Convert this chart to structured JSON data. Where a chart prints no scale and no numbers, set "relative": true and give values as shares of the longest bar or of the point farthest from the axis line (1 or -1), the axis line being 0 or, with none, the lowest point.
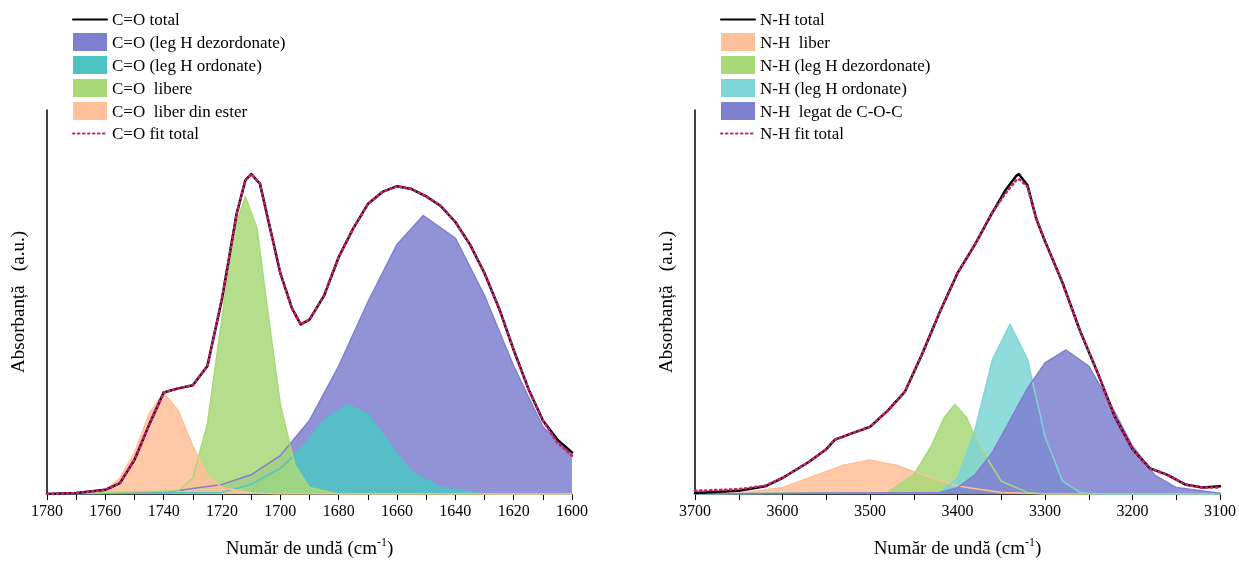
{
  "chart_data": [
    {
      "type": "area",
      "relative": true,
      "xlabel": "Număr de undă (cm$^{-1}$)",
      "ylabel": "Absorbanță   (a.u.)",
      "xlim": [
        1780,
        1600
      ],
      "xticks": [
        1780,
        {
          "value": 1770,
          "label": null
        },
        1760,
        {
          "value": 1750,
          "label": null
        },
        1740,
        {
          "value": 1730,
          "label": null
        },
        1720,
        {
          "value": 1710,
          "label": null
        },
        1700,
        {
          "value": 1690,
          "label": null
        },
        1680,
        {
          "value": 1670,
          "label": null
        },
        1660,
        {
          "value": 1650,
          "label": null
        },
        1640,
        {
          "value": 1630,
          "label": null
        },
        1620,
        {
          "value": 1610,
          "label": null
        },
        1600
      ],
      "legend": "top left",
      "grid": false,
      "marker": "none",
      "series": [
        {
          "name": "C=O total",
          "type": "line",
          "color": "#000000",
          "line_style": "solid",
          "x": [
            1780,
            1770,
            1760,
            1755,
            1750,
            1745,
            1740,
            1735,
            1730,
            1725,
            1720,
            1715,
            1712,
            1710,
            1707,
            1703,
            1700,
            1696,
            1693,
            1690,
            1685,
            1680,
            1675,
            1670,
            1665,
            1660,
            1655,
            1650,
            1645,
            1640,
            1635,
            1630,
            1625,
            1620,
            1615,
            1610,
            1605,
            1600
          ],
          "values": [
            0.0,
            0.003,
            0.013,
            0.034,
            0.107,
            0.216,
            0.317,
            0.33,
            0.34,
            0.4,
            0.61,
            0.875,
            0.98,
            1.0,
            0.97,
            0.81,
            0.69,
            0.58,
            0.53,
            0.545,
            0.62,
            0.74,
            0.83,
            0.906,
            0.944,
            0.962,
            0.953,
            0.93,
            0.9,
            0.85,
            0.78,
            0.69,
            0.58,
            0.45,
            0.33,
            0.23,
            0.17,
            0.13
          ]
        },
        {
          "name": "C=O (leg H dezordonate)",
          "color": "#7f7fd0",
          "x": [
            1780,
            1740,
            1720,
            1710,
            1700,
            1690,
            1680,
            1670,
            1660,
            1651,
            1640,
            1630,
            1620,
            1610,
            1600
          ],
          "values": [
            0.0,
            0.005,
            0.03,
            0.06,
            0.12,
            0.23,
            0.4,
            0.6,
            0.78,
            0.87,
            0.8,
            0.62,
            0.4,
            0.21,
            0.12
          ]
        },
        {
          "name": "C=O (leg H ordonate)",
          "color": "#4cc4c4",
          "x": [
            1780,
            1720,
            1710,
            1700,
            1693,
            1685,
            1677,
            1670,
            1662,
            1655,
            1645,
            1630,
            1600
          ],
          "values": [
            0.0,
            0.005,
            0.03,
            0.08,
            0.14,
            0.23,
            0.28,
            0.25,
            0.15,
            0.07,
            0.02,
            0.0,
            0.0
          ]
        },
        {
          "name": "C=O  libere",
          "color": "#a8d878",
          "x": [
            1780,
            1735,
            1730,
            1725,
            1720,
            1716,
            1712,
            1708,
            1704,
            1700,
            1695,
            1690,
            1680,
            1600
          ],
          "values": [
            0.0,
            0.01,
            0.05,
            0.22,
            0.55,
            0.82,
            0.93,
            0.83,
            0.55,
            0.28,
            0.09,
            0.02,
            0.0,
            0.0
          ]
        },
        {
          "name": "C=O  liber din ester",
          "color": "#ffbf99",
          "x": [
            1780,
            1770,
            1760,
            1755,
            1750,
            1745,
            1740,
            1735,
            1730,
            1725,
            1720,
            1710,
            1700,
            1600
          ],
          "values": [
            0.0,
            0.002,
            0.01,
            0.05,
            0.13,
            0.25,
            0.317,
            0.26,
            0.15,
            0.06,
            0.02,
            0.003,
            0.0,
            0.0
          ]
        },
        {
          "name": "C=O fit total",
          "type": "line",
          "color": "#c8206e",
          "line_style": "dotted",
          "x": [
            1780,
            1770,
            1760,
            1755,
            1750,
            1745,
            1740,
            1735,
            1730,
            1725,
            1720,
            1715,
            1712,
            1710,
            1707,
            1703,
            1700,
            1696,
            1693,
            1690,
            1685,
            1680,
            1675,
            1670,
            1665,
            1660,
            1655,
            1650,
            1645,
            1640,
            1635,
            1630,
            1625,
            1620,
            1615,
            1610,
            1605,
            1600
          ],
          "values": [
            0.0,
            0.003,
            0.013,
            0.034,
            0.107,
            0.216,
            0.317,
            0.33,
            0.34,
            0.4,
            0.61,
            0.875,
            0.98,
            1.0,
            0.97,
            0.81,
            0.69,
            0.58,
            0.53,
            0.545,
            0.62,
            0.74,
            0.83,
            0.906,
            0.944,
            0.962,
            0.953,
            0.93,
            0.9,
            0.85,
            0.78,
            0.69,
            0.58,
            0.45,
            0.33,
            0.23,
            0.16,
            0.12
          ]
        }
      ]
    },
    {
      "type": "area",
      "relative": true,
      "xlabel": "Număr de undă (cm$^{-1}$)",
      "ylabel": "Absorbanță   (a.u.)",
      "xlim": [
        3700,
        3100
      ],
      "xticks": [
        3700,
        {
          "value": 3650,
          "label": null
        },
        3600,
        {
          "value": 3550,
          "label": null
        },
        3500,
        {
          "value": 3450,
          "label": null
        },
        3400,
        {
          "value": 3350,
          "label": null
        },
        3300,
        {
          "value": 3250,
          "label": null
        },
        3200,
        {
          "value": 3150,
          "label": null
        },
        3100
      ],
      "legend": "top left",
      "grid": false,
      "marker": "none",
      "series": [
        {
          "name": "N-H total",
          "type": "line",
          "color": "#000000",
          "line_style": "solid",
          "x": [
            3700,
            3650,
            3620,
            3600,
            3570,
            3550,
            3540,
            3520,
            3500,
            3480,
            3460,
            3440,
            3420,
            3400,
            3380,
            3360,
            3345,
            3333,
            3330,
            3320,
            3310,
            3300,
            3280,
            3260,
            3240,
            3220,
            3200,
            3180,
            3160,
            3140,
            3120,
            3100
          ],
          "values": [
            0.003,
            0.01,
            0.024,
            0.05,
            0.1,
            0.14,
            0.17,
            0.19,
            0.21,
            0.26,
            0.32,
            0.44,
            0.57,
            0.69,
            0.78,
            0.88,
            0.95,
            0.994,
            1.0,
            0.965,
            0.86,
            0.79,
            0.66,
            0.51,
            0.38,
            0.24,
            0.14,
            0.08,
            0.06,
            0.03,
            0.02,
            0.024
          ]
        },
        {
          "name": "N-H  liber",
          "color": "#ffbf99",
          "x": [
            3700,
            3650,
            3600,
            3560,
            3530,
            3500,
            3470,
            3440,
            3400,
            3350,
            3300,
            3100
          ],
          "values": [
            0.0,
            0.002,
            0.02,
            0.06,
            0.09,
            0.106,
            0.09,
            0.06,
            0.025,
            0.005,
            0.0,
            0.0
          ]
        },
        {
          "name": "N-H (leg H dezordonate)",
          "color": "#a8d878",
          "x": [
            3700,
            3480,
            3450,
            3430,
            3415,
            3403,
            3390,
            3375,
            3350,
            3320,
            3300,
            3100
          ],
          "values": [
            0.0,
            0.005,
            0.06,
            0.15,
            0.24,
            0.28,
            0.24,
            0.15,
            0.04,
            0.005,
            0.0,
            0.0
          ]
        },
        {
          "name": "N-H (leg H ordonate)",
          "color": "#7dd5d5",
          "x": [
            3700,
            3420,
            3400,
            3380,
            3360,
            3340,
            3320,
            3300,
            3280,
            3260,
            3240,
            3100
          ],
          "values": [
            0.0,
            0.005,
            0.05,
            0.2,
            0.42,
            0.53,
            0.42,
            0.18,
            0.04,
            0.005,
            0.0,
            0.0
          ]
        },
        {
          "name": "N-H  legat de C-O-C",
          "color": "#7f7fd0",
          "x": [
            3700,
            3420,
            3400,
            3380,
            3360,
            3340,
            3320,
            3300,
            3276,
            3250,
            3225,
            3200,
            3175,
            3150,
            3100
          ],
          "values": [
            0.0,
            0.005,
            0.02,
            0.06,
            0.13,
            0.23,
            0.33,
            0.41,
            0.45,
            0.4,
            0.28,
            0.15,
            0.06,
            0.02,
            0.002
          ]
        },
        {
          "name": "N-H fit total",
          "type": "line",
          "color": "#c8206e",
          "line_style": "dotted",
          "x": [
            3700,
            3650,
            3620,
            3600,
            3570,
            3550,
            3540,
            3520,
            3500,
            3480,
            3460,
            3440,
            3420,
            3400,
            3380,
            3360,
            3345,
            3333,
            3330,
            3320,
            3310,
            3300,
            3280,
            3260,
            3240,
            3220,
            3200,
            3180,
            3160,
            3140,
            3120,
            3100
          ],
          "values": [
            0.01,
            0.015,
            0.026,
            0.05,
            0.1,
            0.14,
            0.17,
            0.19,
            0.21,
            0.26,
            0.32,
            0.44,
            0.57,
            0.69,
            0.78,
            0.88,
            0.94,
            0.98,
            0.985,
            0.96,
            0.86,
            0.79,
            0.66,
            0.51,
            0.38,
            0.24,
            0.14,
            0.08,
            0.06,
            0.03,
            0.02,
            0.02
          ]
        }
      ]
    }
  ]
}
